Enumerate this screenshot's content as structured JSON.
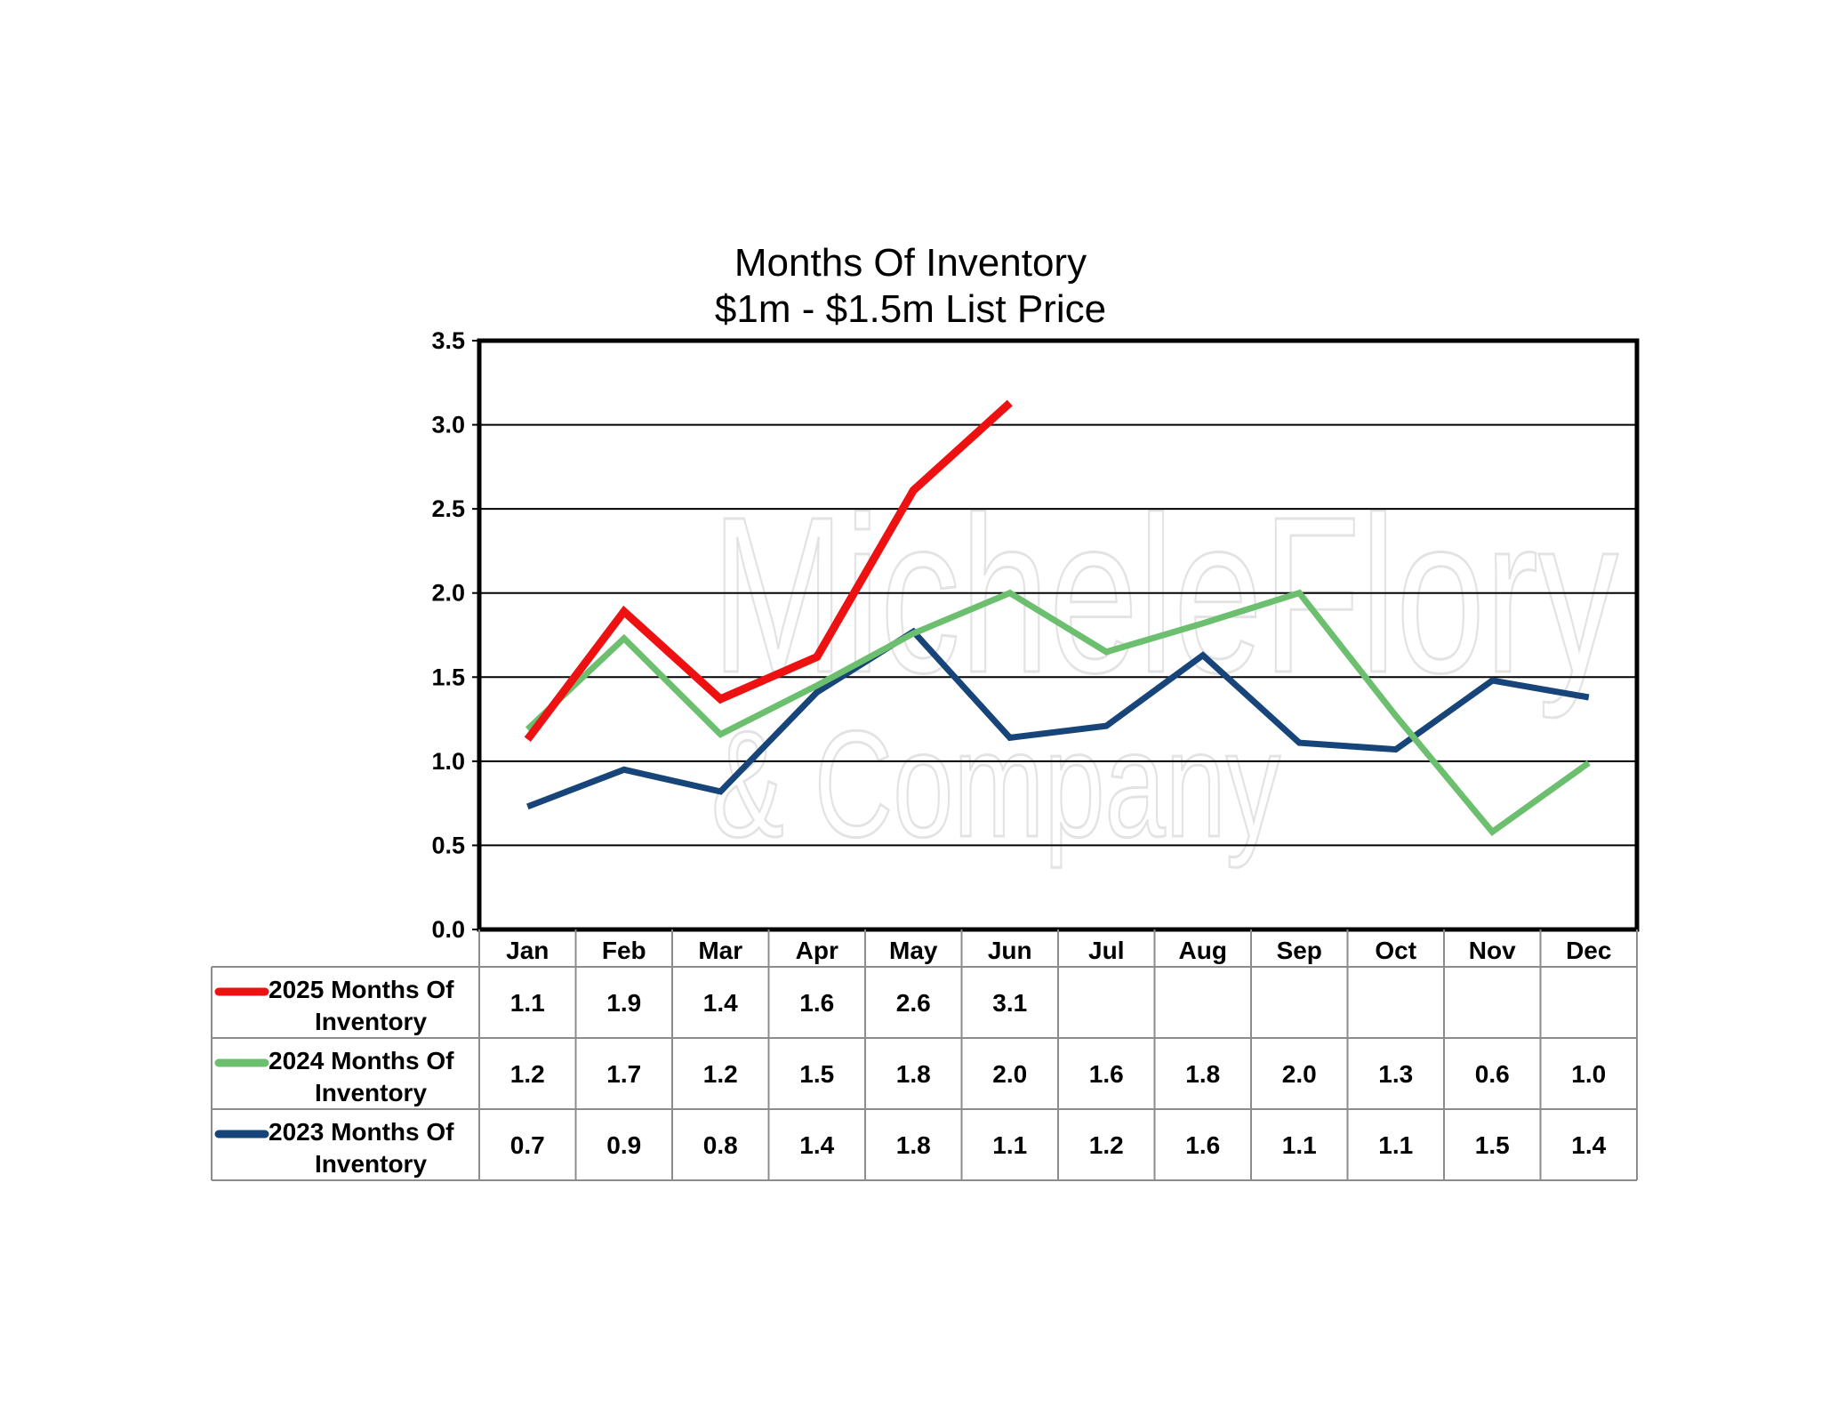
{
  "chart_data": {
    "type": "line",
    "title": "Months Of Inventory",
    "subtitle": "$1m - $1.5m List Price",
    "categories": [
      "Jan",
      "Feb",
      "Mar",
      "Apr",
      "May",
      "Jun",
      "Jul",
      "Aug",
      "Sep",
      "Oct",
      "Nov",
      "Dec"
    ],
    "ylim": [
      0,
      3.5
    ],
    "yticks": [
      "0.0",
      "0.5",
      "1.0",
      "1.5",
      "2.0",
      "2.5",
      "3.0",
      "3.5"
    ],
    "grid": true,
    "legend": "data-table",
    "series": [
      {
        "name": "2025 Months Of Inventory",
        "name_lines": [
          "2025 Months Of",
          "Inventory"
        ],
        "color": "#ee1111",
        "values": [
          1.13,
          1.89,
          1.37,
          1.62,
          2.61,
          3.13,
          null,
          null,
          null,
          null,
          null,
          null
        ],
        "labels": [
          "1.1",
          "1.9",
          "1.4",
          "1.6",
          "2.6",
          "3.1",
          "",
          "",
          "",
          "",
          "",
          ""
        ]
      },
      {
        "name": "2024 Months Of Inventory",
        "name_lines": [
          "2024 Months Of",
          "Inventory"
        ],
        "color": "#6bbf6e",
        "values": [
          1.19,
          1.73,
          1.16,
          1.45,
          1.76,
          2.0,
          1.65,
          1.82,
          2.0,
          1.27,
          0.58,
          0.99
        ],
        "labels": [
          "1.2",
          "1.7",
          "1.2",
          "1.5",
          "1.8",
          "2.0",
          "1.6",
          "1.8",
          "2.0",
          "1.3",
          "0.6",
          "1.0"
        ]
      },
      {
        "name": "2023 Months Of Inventory",
        "name_lines": [
          "2023 Months Of",
          "Inventory"
        ],
        "color": "#17457a",
        "values": [
          0.73,
          0.95,
          0.82,
          1.41,
          1.77,
          1.14,
          1.21,
          1.63,
          1.11,
          1.07,
          1.48,
          1.38
        ],
        "labels": [
          "0.7",
          "0.9",
          "0.8",
          "1.4",
          "1.8",
          "1.1",
          "1.2",
          "1.6",
          "1.1",
          "1.1",
          "1.5",
          "1.4"
        ]
      }
    ]
  },
  "watermark": {
    "line1": "MicheleFlory",
    "line2": "& Company"
  }
}
